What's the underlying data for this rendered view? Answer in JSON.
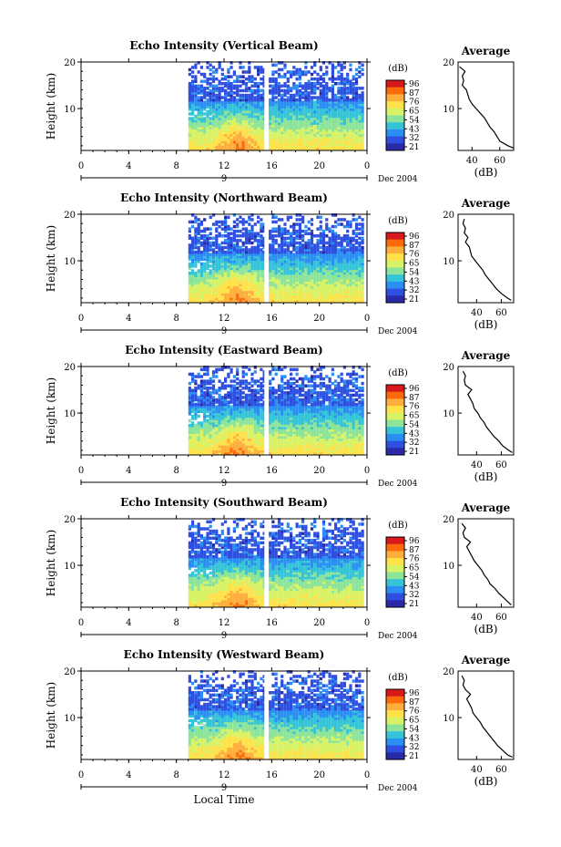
{
  "figure": {
    "x_axis_label": "Local Time",
    "date_label": "Dec 2004",
    "day_label": "9",
    "colorbar_unit": "(dB)",
    "colorbar_ticks": [
      "96",
      "87",
      "76",
      "65",
      "54",
      "43",
      "32",
      "21"
    ],
    "colorbar_colors": [
      "#d7191c",
      "#fd6a0a",
      "#fdae3d",
      "#ffe24a",
      "#d8f266",
      "#8ce49a",
      "#35c4d7",
      "#2a8ef2",
      "#2e4fe0",
      "#2a2aa8"
    ],
    "profile_title": "Average",
    "profile_unit": "(dB)",
    "y_axis_label": "Height (km)"
  },
  "chart_data": [
    {
      "type": "heatmap",
      "title": "Echo Intensity (Vertical Beam)",
      "xlabel": "",
      "ylabel": "Height (km)",
      "xticks": [
        "0",
        "4",
        "8",
        "12",
        "16",
        "20",
        "0"
      ],
      "yticks": [
        "20",
        "10"
      ],
      "xlim": [
        0,
        24
      ],
      "ylim": [
        1,
        20
      ],
      "data_start_hour": 9,
      "gap_hour": 15.5,
      "colorbar": {
        "min": 21,
        "max": 96,
        "unit": "dB"
      },
      "profile": {
        "xticks": [
          "40",
          "60"
        ],
        "xlim": [
          30,
          70
        ],
        "xlabel": "(dB)",
        "heights": [
          1.5,
          2,
          3,
          4,
          5,
          6,
          7,
          8,
          9,
          10,
          11,
          12,
          13,
          14,
          15,
          16,
          17,
          18,
          19
        ],
        "values": [
          70,
          66,
          60,
          58,
          56,
          53,
          51,
          49,
          46,
          43,
          40,
          38,
          37,
          36,
          33,
          34,
          33,
          35,
          31
        ]
      }
    },
    {
      "type": "heatmap",
      "title": "Echo Intensity (Northward Beam)",
      "xlabel": "",
      "ylabel": "Height (km)",
      "xticks": [
        "0",
        "4",
        "8",
        "12",
        "16",
        "20",
        "0"
      ],
      "yticks": [
        "20",
        "10"
      ],
      "xlim": [
        0,
        24
      ],
      "ylim": [
        1,
        20
      ],
      "data_start_hour": 9,
      "gap_hour": 15.5,
      "colorbar": {
        "min": 21,
        "max": 96,
        "unit": "dB"
      },
      "profile": {
        "xticks": [
          "40",
          "60"
        ],
        "xlim": [
          25,
          70
        ],
        "xlabel": "(dB)",
        "heights": [
          1.5,
          2,
          3,
          4,
          5,
          6,
          7,
          8,
          9,
          10,
          11,
          12,
          13,
          14,
          15,
          16,
          17,
          18,
          19
        ],
        "values": [
          68,
          65,
          60,
          56,
          53,
          50,
          47,
          45,
          42,
          39,
          36,
          35,
          34,
          31,
          33,
          30,
          31,
          29,
          30
        ]
      }
    },
    {
      "type": "heatmap",
      "title": "Echo Intensity (Eastward Beam)",
      "xlabel": "",
      "ylabel": "Height (km)",
      "xticks": [
        "0",
        "4",
        "8",
        "12",
        "16",
        "20",
        "0"
      ],
      "yticks": [
        "20",
        "10"
      ],
      "xlim": [
        0,
        24
      ],
      "ylim": [
        1,
        20
      ],
      "data_start_hour": 9,
      "gap_hour": 15.5,
      "colorbar": {
        "min": 21,
        "max": 96,
        "unit": "dB"
      },
      "profile": {
        "xticks": [
          "40",
          "60"
        ],
        "xlim": [
          25,
          70
        ],
        "xlabel": "(dB)",
        "heights": [
          1.5,
          2,
          3,
          4,
          5,
          6,
          7,
          8,
          9,
          10,
          11,
          12,
          13,
          14,
          15,
          16,
          17,
          18,
          19
        ],
        "values": [
          69,
          66,
          61,
          58,
          54,
          51,
          48,
          46,
          43,
          41,
          38,
          37,
          35,
          33,
          36,
          31,
          30,
          31,
          29
        ]
      }
    },
    {
      "type": "heatmap",
      "title": "Echo Intensity (Southward Beam)",
      "xlabel": "",
      "ylabel": "Height (km)",
      "xticks": [
        "0",
        "4",
        "8",
        "12",
        "16",
        "20",
        "0"
      ],
      "yticks": [
        "20",
        "10"
      ],
      "xlim": [
        0,
        24
      ],
      "ylim": [
        1,
        20
      ],
      "data_start_hour": 9,
      "gap_hour": 15.5,
      "colorbar": {
        "min": 21,
        "max": 96,
        "unit": "dB"
      },
      "profile": {
        "xticks": [
          "40",
          "60"
        ],
        "xlim": [
          25,
          70
        ],
        "xlabel": "(dB)",
        "heights": [
          1.5,
          2,
          3,
          4,
          5,
          6,
          7,
          8,
          9,
          10,
          11,
          12,
          13,
          14,
          15,
          16,
          17,
          18,
          19
        ],
        "values": [
          68,
          66,
          62,
          58,
          55,
          51,
          49,
          46,
          44,
          41,
          38,
          36,
          34,
          32,
          35,
          30,
          29,
          31,
          28
        ]
      }
    },
    {
      "type": "heatmap",
      "title": "Echo Intensity (Westward Beam)",
      "xlabel": "Local Time",
      "ylabel": "Height (km)",
      "xticks": [
        "0",
        "4",
        "8",
        "12",
        "16",
        "20",
        "0"
      ],
      "yticks": [
        "20",
        "10"
      ],
      "xlim": [
        0,
        24
      ],
      "ylim": [
        1,
        20
      ],
      "data_start_hour": 9,
      "gap_hour": 15.5,
      "colorbar": {
        "min": 21,
        "max": 96,
        "unit": "dB"
      },
      "profile": {
        "xticks": [
          "40",
          "60"
        ],
        "xlim": [
          25,
          70
        ],
        "xlabel": "(dB)",
        "heights": [
          1.5,
          2,
          3,
          4,
          5,
          6,
          7,
          8,
          9,
          10,
          11,
          12,
          13,
          14,
          15,
          16,
          17,
          18,
          19
        ],
        "values": [
          69,
          65,
          61,
          57,
          54,
          51,
          48,
          45,
          43,
          40,
          37,
          36,
          34,
          32,
          35,
          31,
          29,
          30,
          28
        ]
      }
    }
  ]
}
